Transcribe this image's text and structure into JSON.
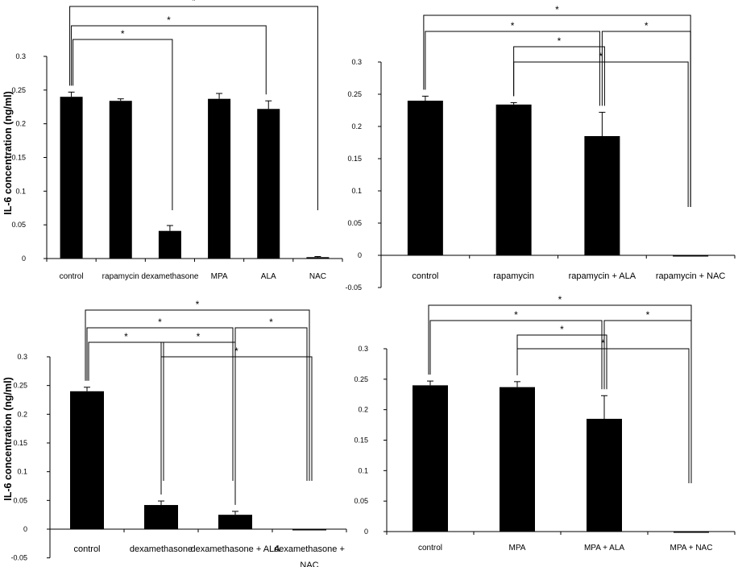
{
  "figure": {
    "y_axis_label": "IL-6 concentration  (ng/ml)"
  },
  "chart_data": [
    {
      "type": "bar",
      "panel": "top-left",
      "categories": [
        "control",
        "rapamycin",
        "dexamethasone",
        "MPA",
        "ALA",
        "NAC"
      ],
      "values": [
        0.24,
        0.234,
        0.041,
        0.237,
        0.222,
        0.002
      ],
      "errors": [
        0.007,
        0.003,
        0.008,
        0.008,
        0.012,
        0.001
      ],
      "yticks": [
        "0",
        "0.05",
        "0.1",
        "0.15",
        "0.2",
        "0.25",
        "0.3"
      ],
      "ylabel": "IL-6 concentration  (ng/ml)",
      "ylim": [
        0,
        0.3
      ],
      "significance": [
        {
          "from": "control",
          "to": "NAC",
          "label": "*"
        },
        {
          "from": "control",
          "to": "ALA",
          "label": "*"
        },
        {
          "from": "control",
          "to": "dexamethasone",
          "label": "*"
        }
      ]
    },
    {
      "type": "bar",
      "panel": "top-right",
      "categories": [
        "control",
        "rapamycin",
        "rapamycin + ALA",
        "rapamycin + NAC"
      ],
      "values": [
        0.24,
        0.234,
        0.185,
        -0.001
      ],
      "errors": [
        0.007,
        0.003,
        0.037,
        0.0
      ],
      "yticks": [
        "-0.05",
        "0",
        "0.05",
        "0.1",
        "0.15",
        "0.2",
        "0.25",
        "0.3"
      ],
      "ylabel": "",
      "ylim": [
        -0.05,
        0.3
      ],
      "significance": [
        {
          "from": "control",
          "to": "rapamycin + NAC",
          "label": "*"
        },
        {
          "from": "control",
          "to": "rapamycin + ALA",
          "label": "*"
        },
        {
          "from": "rapamycin",
          "to": "rapamycin + ALA",
          "label": "*"
        },
        {
          "from": "rapamycin + ALA",
          "to": "rapamycin + NAC",
          "label": "*"
        },
        {
          "from": "rapamycin",
          "to": "rapamycin + NAC",
          "label": "*"
        }
      ]
    },
    {
      "type": "bar",
      "panel": "bottom-left",
      "categories": [
        "control",
        "dexamethasone",
        "dexamethasone + ALA",
        "dexamethasone +\nNAC"
      ],
      "values": [
        0.24,
        0.042,
        0.025,
        -0.001
      ],
      "errors": [
        0.007,
        0.007,
        0.006,
        0.0
      ],
      "yticks": [
        "-0.05",
        "0",
        "0.05",
        "0.1",
        "0.15",
        "0.2",
        "0.25",
        "0.3"
      ],
      "ylabel": "IL-6 concentration  (ng/ml)",
      "ylim": [
        -0.05,
        0.3
      ],
      "significance": [
        {
          "from": "control",
          "to": "dexamethasone +\nNAC",
          "label": "*"
        },
        {
          "from": "control",
          "to": "dexamethasone + ALA",
          "label": "*"
        },
        {
          "from": "control",
          "to": "dexamethasone",
          "label": "*"
        },
        {
          "from": "dexamethasone",
          "to": "dexamethasone + ALA",
          "label": "*"
        },
        {
          "from": "dexamethasone + ALA",
          "to": "dexamethasone +\nNAC",
          "label": "*"
        },
        {
          "from": "dexamethasone",
          "to": "dexamethasone +\nNAC",
          "label": "*"
        }
      ]
    },
    {
      "type": "bar",
      "panel": "bottom-right",
      "categories": [
        "control",
        "MPA",
        "MPA + ALA",
        "MPA + NAC"
      ],
      "values": [
        0.24,
        0.237,
        0.185,
        -0.001
      ],
      "errors": [
        0.007,
        0.009,
        0.038,
        0.0
      ],
      "yticks": [
        "0",
        "0.05",
        "0.1",
        "0.15",
        "0.2",
        "0.25",
        "0.3"
      ],
      "ylabel": "",
      "ylim": [
        0,
        0.3
      ],
      "significance": [
        {
          "from": "control",
          "to": "MPA + NAC",
          "label": "*"
        },
        {
          "from": "control",
          "to": "MPA + ALA",
          "label": "*"
        },
        {
          "from": "MPA",
          "to": "MPA + ALA",
          "label": "*"
        },
        {
          "from": "MPA + ALA",
          "to": "MPA + NAC",
          "label": "*"
        },
        {
          "from": "MPA",
          "to": "MPA + NAC",
          "label": "*"
        }
      ]
    }
  ]
}
